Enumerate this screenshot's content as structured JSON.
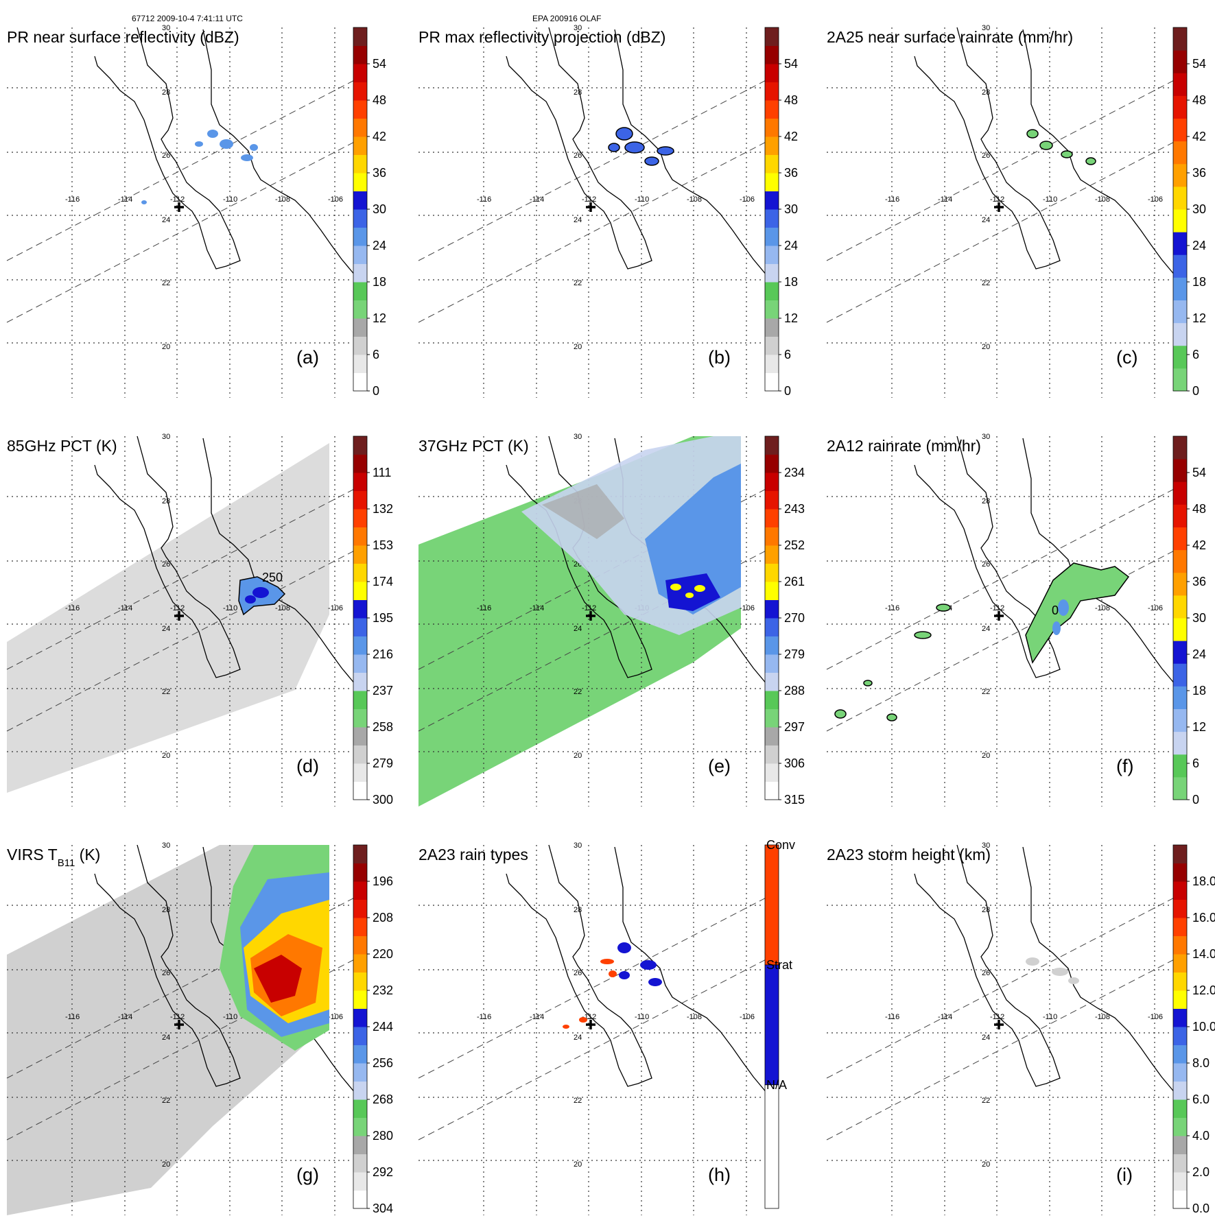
{
  "header": {
    "left": "67712 2009-10-4 7:41:11 UTC",
    "center": "EPA 200916 OLAF"
  },
  "map_labels": {
    "lon": [
      "-116",
      "-114",
      "-112",
      "-110",
      "-108",
      "-106"
    ],
    "lat": [
      "30",
      "28",
      "26",
      "24",
      "22",
      "20"
    ]
  },
  "chart_data": [
    {
      "type": "heatmap",
      "id": "a",
      "letter": "(a)",
      "title": "PR near surface reflectivity (dBZ)",
      "colorbar": {
        "ticks": [
          "0",
          "6",
          "12",
          "18",
          "24",
          "30",
          "36",
          "42",
          "48",
          "54"
        ],
        "colors": [
          "#ffffff",
          "#e8e8e8",
          "#d0d0d0",
          "#a8a8a8",
          "#78d478",
          "#58c858",
          "#c8d4f0",
          "#96b8f0",
          "#5a96e8",
          "#3c64e6",
          "#1414d2",
          "#ffff00",
          "#ffd700",
          "#ffa000",
          "#ff7800",
          "#ff4000",
          "#e61400",
          "#c80000",
          "#960000",
          "#6e1e1e"
        ]
      }
    },
    {
      "type": "heatmap",
      "id": "b",
      "letter": "(b)",
      "title": "PR max reflectivity projection (dBZ)",
      "colorbar": {
        "ticks": [
          "0",
          "6",
          "12",
          "18",
          "24",
          "30",
          "36",
          "42",
          "48",
          "54"
        ],
        "colors": [
          "#ffffff",
          "#e8e8e8",
          "#d0d0d0",
          "#a8a8a8",
          "#78d478",
          "#58c858",
          "#c8d4f0",
          "#96b8f0",
          "#5a96e8",
          "#3c64e6",
          "#1414d2",
          "#ffff00",
          "#ffd700",
          "#ffa000",
          "#ff7800",
          "#ff4000",
          "#e61400",
          "#c80000",
          "#960000",
          "#6e1e1e"
        ]
      }
    },
    {
      "type": "heatmap",
      "id": "c",
      "letter": "(c)",
      "title": "2A25 near surface rainrate (mm/hr)",
      "colorbar": {
        "ticks": [
          "0",
          "6",
          "12",
          "18",
          "24",
          "30",
          "36",
          "42",
          "48",
          "54"
        ],
        "colors": [
          "#78d478",
          "#58c858",
          "#c8d4f0",
          "#96b8f0",
          "#5a96e8",
          "#3c64e6",
          "#1414d2",
          "#ffff00",
          "#ffd700",
          "#ffa000",
          "#ff7800",
          "#ff4000",
          "#e61400",
          "#c80000",
          "#960000",
          "#6e1e1e"
        ]
      }
    },
    {
      "type": "heatmap",
      "id": "d",
      "letter": "(d)",
      "title": "85GHz PCT (K)",
      "contour_label": "250",
      "colorbar": {
        "ticks": [
          "300",
          "279",
          "258",
          "237",
          "216",
          "195",
          "174",
          "153",
          "132",
          "111"
        ],
        "colors": [
          "#ffffff",
          "#e8e8e8",
          "#d0d0d0",
          "#a8a8a8",
          "#78d478",
          "#58c858",
          "#c8d4f0",
          "#96b8f0",
          "#5a96e8",
          "#3c64e6",
          "#1414d2",
          "#ffff00",
          "#ffd700",
          "#ffa000",
          "#ff7800",
          "#ff4000",
          "#e61400",
          "#c80000",
          "#960000",
          "#6e1e1e"
        ]
      }
    },
    {
      "type": "heatmap",
      "id": "e",
      "letter": "(e)",
      "title": "37GHz PCT (K)",
      "colorbar": {
        "ticks": [
          "315",
          "306",
          "297",
          "288",
          "279",
          "270",
          "261",
          "252",
          "243",
          "234"
        ],
        "colors": [
          "#ffffff",
          "#e8e8e8",
          "#d0d0d0",
          "#a8a8a8",
          "#78d478",
          "#58c858",
          "#c8d4f0",
          "#96b8f0",
          "#5a96e8",
          "#3c64e6",
          "#1414d2",
          "#ffff00",
          "#ffd700",
          "#ffa000",
          "#ff7800",
          "#ff4000",
          "#e61400",
          "#c80000",
          "#960000",
          "#6e1e1e"
        ]
      }
    },
    {
      "type": "heatmap",
      "id": "f",
      "letter": "(f)",
      "title": "2A12 rainrate (mm/hr)",
      "contour_label": "0",
      "colorbar": {
        "ticks": [
          "0",
          "6",
          "12",
          "18",
          "24",
          "30",
          "36",
          "42",
          "48",
          "54"
        ],
        "colors": [
          "#78d478",
          "#58c858",
          "#c8d4f0",
          "#96b8f0",
          "#5a96e8",
          "#3c64e6",
          "#1414d2",
          "#ffff00",
          "#ffd700",
          "#ffa000",
          "#ff7800",
          "#ff4000",
          "#e61400",
          "#c80000",
          "#960000",
          "#6e1e1e"
        ]
      }
    },
    {
      "type": "heatmap",
      "id": "g",
      "letter": "(g)",
      "title": "VIRS T",
      "title_sub": "B11",
      "title_tail": " (K)",
      "colorbar": {
        "ticks": [
          "304",
          "292",
          "280",
          "268",
          "256",
          "244",
          "232",
          "220",
          "208",
          "196"
        ],
        "colors": [
          "#ffffff",
          "#e8e8e8",
          "#d0d0d0",
          "#a8a8a8",
          "#78d478",
          "#58c858",
          "#c8d4f0",
          "#96b8f0",
          "#5a96e8",
          "#3c64e6",
          "#1414d2",
          "#ffff00",
          "#ffd700",
          "#ffa000",
          "#ff7800",
          "#ff4000",
          "#e61400",
          "#c80000",
          "#960000",
          "#6e1e1e"
        ]
      }
    },
    {
      "type": "heatmap",
      "id": "h",
      "letter": "(h)",
      "title": "2A23 rain types",
      "colorbar": {
        "categories": [
          "N/A",
          "Strat",
          "Conv"
        ],
        "colors": [
          "#ffffff",
          "#1414d2",
          "#ff4000"
        ]
      }
    },
    {
      "type": "heatmap",
      "id": "i",
      "letter": "(i)",
      "title": "2A23 storm height (km)",
      "colorbar": {
        "ticks": [
          "0.0",
          "2.0",
          "4.0",
          "6.0",
          "8.0",
          "10.0",
          "12.0",
          "14.0",
          "16.0",
          "18.0"
        ],
        "colors": [
          "#ffffff",
          "#e8e8e8",
          "#d0d0d0",
          "#a8a8a8",
          "#78d478",
          "#58c858",
          "#c8d4f0",
          "#96b8f0",
          "#5a96e8",
          "#3c64e6",
          "#1414d2",
          "#ffff00",
          "#ffd700",
          "#ffa000",
          "#ff7800",
          "#ff4000",
          "#e61400",
          "#c80000",
          "#960000",
          "#6e1e1e"
        ]
      }
    }
  ]
}
